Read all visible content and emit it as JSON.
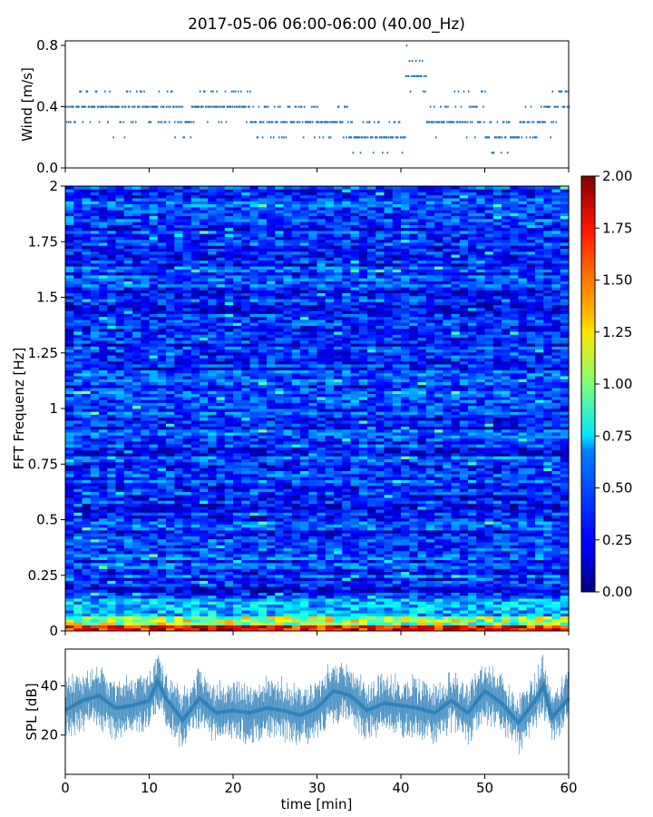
{
  "title": "2017-05-06 06:00-06:00 (40.00_Hz)",
  "chart_data": [
    {
      "type": "scatter",
      "name": "wind",
      "ylabel": "Wind [m/s]",
      "xlim": [
        0,
        60
      ],
      "ylim": [
        0.0,
        0.83
      ],
      "yticks": [
        0.0,
        0.4,
        0.8
      ],
      "ytick_labels": [
        "0.0",
        "0.4",
        "0.8"
      ],
      "color": "#1f77b4",
      "segments": [
        {
          "t0": 0,
          "t1": 2,
          "levels": [
            0.4,
            0.5,
            0.3
          ]
        },
        {
          "t0": 2,
          "t1": 5,
          "levels": [
            0.4,
            0.5,
            0.3
          ]
        },
        {
          "t0": 5,
          "t1": 7,
          "levels": [
            0.4,
            0.3,
            0.2,
            0.5
          ]
        },
        {
          "t0": 7,
          "t1": 10,
          "levels": [
            0.4,
            0.5,
            0.3
          ]
        },
        {
          "t0": 10,
          "t1": 13,
          "levels": [
            0.4,
            0.3,
            0.5
          ]
        },
        {
          "t0": 13,
          "t1": 15,
          "levels": [
            0.3,
            0.2,
            0.4
          ]
        },
        {
          "t0": 15,
          "t1": 18,
          "levels": [
            0.4,
            0.5,
            0.3
          ]
        },
        {
          "t0": 18,
          "t1": 22,
          "levels": [
            0.4,
            0.3,
            0.5
          ]
        },
        {
          "t0": 22,
          "t1": 26,
          "levels": [
            0.3,
            0.4,
            0.2
          ]
        },
        {
          "t0": 26,
          "t1": 30,
          "levels": [
            0.3,
            0.4,
            0.2
          ]
        },
        {
          "t0": 30,
          "t1": 34,
          "levels": [
            0.3,
            0.2,
            0.4
          ]
        },
        {
          "t0": 34,
          "t1": 38,
          "levels": [
            0.2,
            0.3,
            0.1
          ]
        },
        {
          "t0": 38,
          "t1": 40.5,
          "levels": [
            0.2,
            0.1,
            0.3
          ]
        },
        {
          "t0": 40.5,
          "t1": 43,
          "levels": [
            0.6,
            0.7,
            0.5,
            0.8
          ]
        },
        {
          "t0": 43,
          "t1": 46,
          "levels": [
            0.3,
            0.4,
            0.2,
            0.1
          ]
        },
        {
          "t0": 46,
          "t1": 50,
          "levels": [
            0.3,
            0.4,
            0.5,
            0.2
          ]
        },
        {
          "t0": 50,
          "t1": 54,
          "levels": [
            0.2,
            0.3,
            0.1
          ]
        },
        {
          "t0": 54,
          "t1": 57,
          "levels": [
            0.3,
            0.2,
            0.4
          ]
        },
        {
          "t0": 57,
          "t1": 60,
          "levels": [
            0.4,
            0.5,
            0.3,
            0.2
          ]
        }
      ]
    },
    {
      "type": "heatmap",
      "name": "spectrogram",
      "ylabel": "FFT Frequenz [Hz]",
      "xlim": [
        0,
        60
      ],
      "ylim": [
        0,
        2
      ],
      "yticks": [
        0,
        0.25,
        0.5,
        0.75,
        1,
        1.25,
        1.5,
        1.75,
        2
      ],
      "ytick_labels": [
        "0",
        "0.25",
        "0.5",
        "0.75",
        "1",
        "1.25",
        "1.5",
        "1.75",
        "2"
      ],
      "colormap": "jet",
      "clim": [
        0.0,
        2.0
      ],
      "colorbar_ticks": [
        "0.00",
        "0.25",
        "0.50",
        "0.75",
        "1.00",
        "1.25",
        "1.50",
        "1.75",
        "2.00"
      ],
      "typical_value_high_freq": 0.3,
      "typical_value_low_freq": 1.6
    },
    {
      "type": "line",
      "name": "spl",
      "xlabel": "time [min]",
      "ylabel": "SPL [dB]",
      "xlim": [
        0,
        60
      ],
      "ylim": [
        4,
        55
      ],
      "xticks": [
        0,
        10,
        20,
        30,
        40,
        50,
        60
      ],
      "xtick_labels": [
        "0",
        "10",
        "20",
        "30",
        "40",
        "50",
        "60"
      ],
      "yticks": [
        20,
        40
      ],
      "ytick_labels": [
        "20",
        "40"
      ],
      "color": "#1f77b4",
      "x": [
        0,
        2,
        4,
        6,
        8,
        10,
        11,
        12,
        14,
        16,
        18,
        20,
        22,
        24,
        26,
        28,
        30,
        32,
        34,
        36,
        38,
        40,
        42,
        44,
        46,
        48,
        50,
        52,
        54,
        56,
        57,
        58,
        60
      ],
      "y": [
        30,
        34,
        36,
        31,
        32,
        34,
        42,
        35,
        26,
        35,
        29,
        30,
        29,
        31,
        30,
        28,
        31,
        38,
        36,
        30,
        33,
        32,
        31,
        29,
        34,
        29,
        38,
        33,
        25,
        34,
        40,
        27,
        35
      ],
      "spread": 8
    }
  ]
}
